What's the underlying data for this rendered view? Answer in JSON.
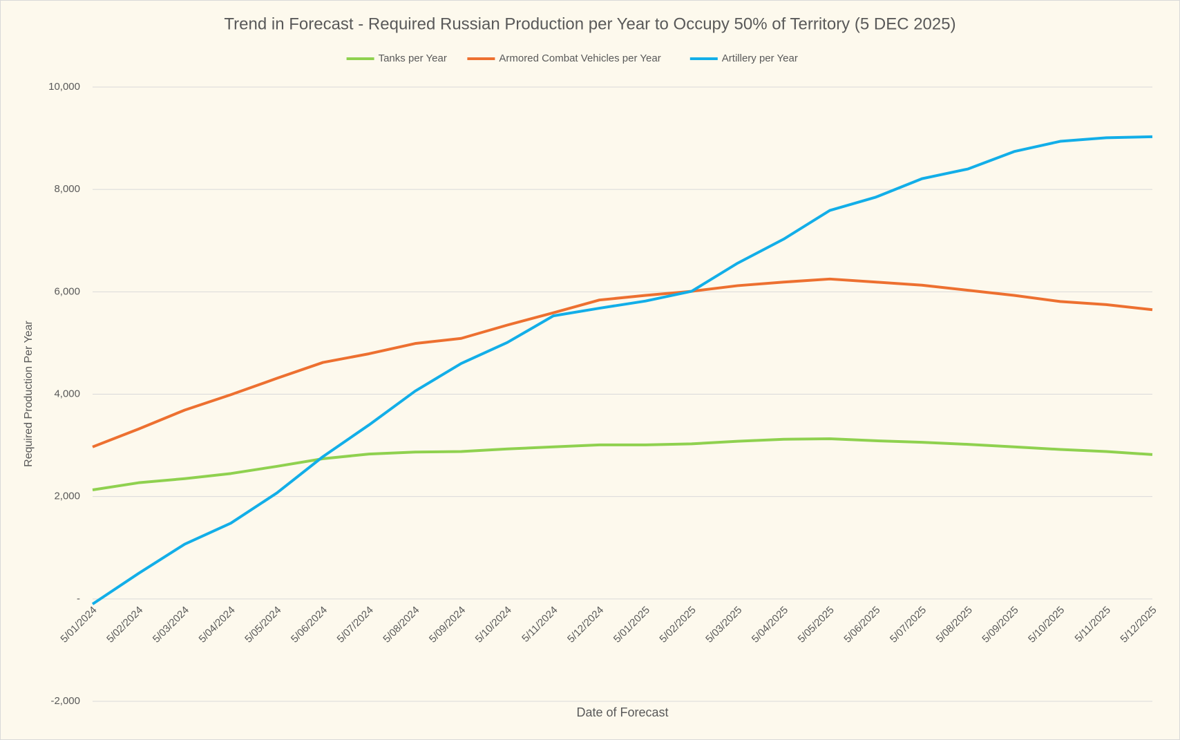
{
  "chart_data": {
    "type": "line",
    "title": "Trend in Forecast - Required Russian Production per Year to Occupy 50% of Territory (5 DEC 2025)",
    "x_label": "Date of Forecast",
    "y_label": "Required Production Per Year",
    "categories": [
      "5/01/2024",
      "5/02/2024",
      "5/03/2024",
      "5/04/2024",
      "5/05/2024",
      "5/06/2024",
      "5/07/2024",
      "5/08/2024",
      "5/09/2024",
      "5/10/2024",
      "5/11/2024",
      "5/12/2024",
      "5/01/2025",
      "5/02/2025",
      "5/03/2025",
      "5/04/2025",
      "5/05/2025",
      "5/06/2025",
      "5/07/2025",
      "5/08/2025",
      "5/09/2025",
      "5/10/2025",
      "5/11/2025",
      "5/12/2025"
    ],
    "series": [
      {
        "name": "Tanks per Year",
        "color": "#8fd14f",
        "values": [
          2130,
          2270,
          2350,
          2450,
          2590,
          2740,
          2830,
          2870,
          2880,
          2930,
          2970,
          3010,
          3010,
          3030,
          3080,
          3120,
          3130,
          3090,
          3060,
          3020,
          2970,
          2920,
          2880,
          2820
        ]
      },
      {
        "name": "Armored Combat Vehicles per Year",
        "color": "#ed7030",
        "values": [
          2970,
          3320,
          3690,
          3990,
          4310,
          4620,
          4790,
          4990,
          5090,
          5350,
          5590,
          5840,
          5930,
          6010,
          6120,
          6190,
          6250,
          6190,
          6130,
          6030,
          5930,
          5810,
          5750,
          5650
        ]
      },
      {
        "name": "Artillery per Year",
        "color": "#12aee8",
        "values": [
          -100,
          500,
          1070,
          1480,
          2070,
          2780,
          3400,
          4060,
          4600,
          5010,
          5530,
          5680,
          5820,
          6010,
          6560,
          7030,
          7590,
          7850,
          8210,
          8400,
          8740,
          8940,
          9010,
          9030
        ]
      }
    ],
    "ylim": [
      -2000,
      10000
    ],
    "yticks": [
      {
        "value": -2000,
        "label": "-2,000"
      },
      {
        "value": 0,
        "label": "-"
      },
      {
        "value": 2000,
        "label": "2,000"
      },
      {
        "value": 4000,
        "label": "4,000"
      },
      {
        "value": 6000,
        "label": "6,000"
      },
      {
        "value": 8000,
        "label": "8,000"
      },
      {
        "value": 10000,
        "label": "10,000"
      }
    ],
    "grid": true,
    "legend": "top"
  }
}
